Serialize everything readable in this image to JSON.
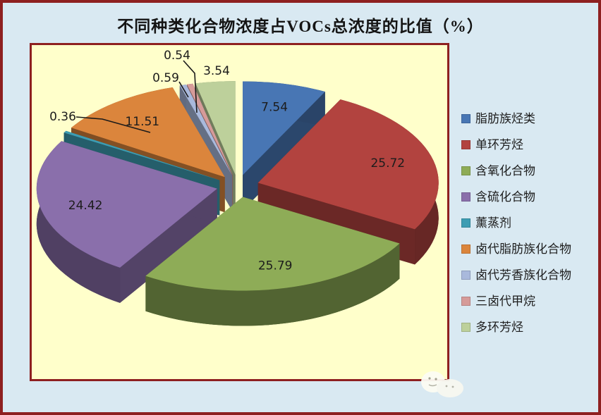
{
  "window": {
    "outer_bg": "#d9e9f2",
    "frame_color": "#8e2020",
    "plot_bg": "#ffffcb",
    "plot_border_color": "#8e2020"
  },
  "title": "不同种类化合物浓度占VOCs总浓度的比值（%）",
  "chart_data": {
    "type": "pie",
    "style": "3d-exploded",
    "title": "不同种类化合物浓度占VOCs总浓度的比值（%）",
    "unit": "%",
    "start_angle_deg": -90,
    "direction": "clockwise",
    "legend_position": "right",
    "series": [
      {
        "name": "脂肪族烃类",
        "value": 7.54,
        "color": "#4876B4",
        "label_placement": "inside"
      },
      {
        "name": "单环芳烃",
        "value": 25.72,
        "color": "#B2433F",
        "label_placement": "inside"
      },
      {
        "name": "含氧化合物",
        "value": 25.79,
        "color": "#8EAC57",
        "label_placement": "inside"
      },
      {
        "name": "含硫化合物",
        "value": 24.42,
        "color": "#8A6FAB",
        "label_placement": "inside"
      },
      {
        "name": "薰蒸剂",
        "value": 0.36,
        "color": "#3D9DB3",
        "label_placement": "outside",
        "label_pos": [
          44,
          101
        ],
        "leader_path": [
          [
            63,
            102
          ],
          [
            100,
            105
          ],
          [
            168,
            124
          ]
        ]
      },
      {
        "name": "卤代脂肪族化合物",
        "value": 11.51,
        "color": "#DB853C",
        "label_placement": "inside"
      },
      {
        "name": "卤代芳香族化合物",
        "value": 0.59,
        "color": "#A9B9DC",
        "label_placement": "outside",
        "label_pos": [
          190,
          46
        ],
        "leader_path": [
          [
            209,
            52
          ],
          [
            222,
            74
          ]
        ]
      },
      {
        "name": "三卤代甲烷",
        "value": 0.54,
        "color": "#D69B99",
        "label_placement": "outside",
        "label_pos": [
          206,
          14
        ],
        "leader_path": [
          [
            215,
            22
          ],
          [
            231,
            40
          ],
          [
            234,
            96
          ]
        ]
      },
      {
        "name": "多环芳烃",
        "value": 3.54,
        "color": "#BDD09B",
        "label_placement": "outside",
        "label_pos": [
          262,
          36
        ]
      }
    ]
  }
}
